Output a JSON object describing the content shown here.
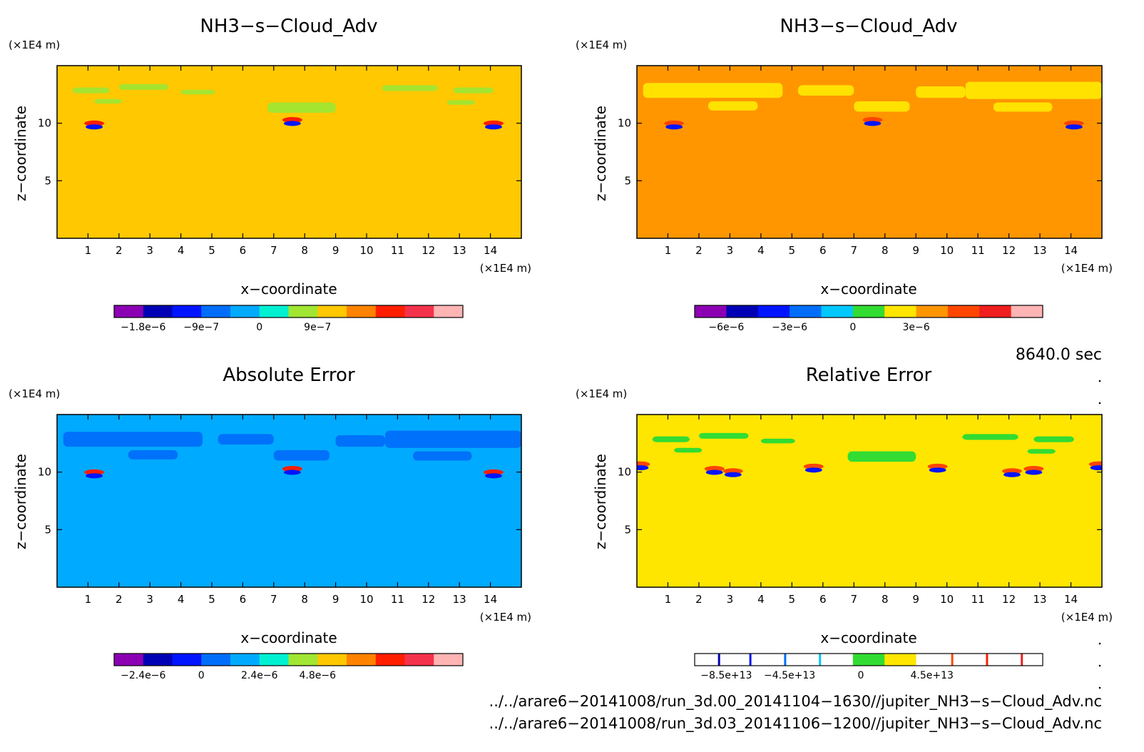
{
  "chart_data": [
    {
      "type": "heatmap",
      "title": "NH3−s−Cloud_Adv",
      "xlabel": "x−coordinate",
      "ylabel": "z−coordinate",
      "x_unit": "(×1E4 m)",
      "y_unit": "(×1E4 m)",
      "xticks": [
        "1",
        "2",
        "3",
        "4",
        "5",
        "6",
        "7",
        "8",
        "9",
        "10",
        "11",
        "12",
        "13",
        "14"
      ],
      "yticks": [
        "10",
        "5"
      ],
      "xlim": [
        0,
        15
      ],
      "ylim": [
        0,
        15
      ],
      "background_color": "#ffc800",
      "colorbar": {
        "colors": [
          "#8c00b4",
          "#0000b4",
          "#0014ff",
          "#006efa",
          "#00aaff",
          "#00f0d2",
          "#a0e632",
          "#ffc800",
          "#ff8200",
          "#ff1e00",
          "#f5324b",
          "#ffb4b4"
        ],
        "tick_labels": [
          "−1.8e−6",
          "−9e−7",
          "0",
          "9e−7"
        ],
        "tick_values": [
          -1.8e-06,
          -9e-07,
          0,
          9e-07
        ]
      }
    },
    {
      "type": "heatmap",
      "title": "NH3−s−Cloud_Adv",
      "xlabel": "x−coordinate",
      "ylabel": "z−coordinate",
      "x_unit": "(×1E4 m)",
      "y_unit": "(×1E4 m)",
      "xticks": [
        "1",
        "2",
        "3",
        "4",
        "5",
        "6",
        "7",
        "8",
        "9",
        "10",
        "11",
        "12",
        "13",
        "14"
      ],
      "yticks": [
        "10",
        "5"
      ],
      "xlim": [
        0,
        15
      ],
      "ylim": [
        0,
        15
      ],
      "background_color": "#ff9600",
      "colorbar": {
        "colors": [
          "#8c00b4",
          "#0000b4",
          "#0014ff",
          "#006efa",
          "#00c8ff",
          "#32dc32",
          "#ffe600",
          "#ff9600",
          "#ff4600",
          "#f01e1e",
          "#ffb4b4"
        ],
        "tick_labels": [
          "−6e−6",
          "−3e−6",
          "0",
          "3e−6"
        ],
        "tick_values": [
          -6e-06,
          -3e-06,
          0,
          3e-06
        ]
      }
    },
    {
      "type": "heatmap",
      "title": "Absolute Error",
      "xlabel": "x−coordinate",
      "ylabel": "z−coordinate",
      "x_unit": "(×1E4 m)",
      "y_unit": "(×1E4 m)",
      "xticks": [
        "1",
        "2",
        "3",
        "4",
        "5",
        "6",
        "7",
        "8",
        "9",
        "10",
        "11",
        "12",
        "13",
        "14"
      ],
      "yticks": [
        "10",
        "5"
      ],
      "xlim": [
        0,
        15
      ],
      "ylim": [
        0,
        15
      ],
      "background_color": "#00aaff",
      "colorbar": {
        "colors": [
          "#8c00b4",
          "#0000b4",
          "#0014ff",
          "#006efa",
          "#00aaff",
          "#00f0d2",
          "#a0e632",
          "#ffc800",
          "#ff8200",
          "#ff1e00",
          "#f5324b",
          "#ffb4b4"
        ],
        "tick_labels": [
          "−2.4e−6",
          "0",
          "2.4e−6",
          "4.8e−6"
        ],
        "tick_values": [
          -2.4e-06,
          0,
          2.4e-06,
          4.8e-06
        ]
      }
    },
    {
      "type": "heatmap",
      "title": "Relative Error",
      "xlabel": "x−coordinate",
      "ylabel": "z−coordinate",
      "x_unit": "(×1E4 m)",
      "y_unit": "(×1E4 m)",
      "xticks": [
        "1",
        "2",
        "3",
        "4",
        "5",
        "6",
        "7",
        "8",
        "9",
        "10",
        "11",
        "12",
        "13",
        "14"
      ],
      "yticks": [
        "10",
        "5"
      ],
      "xlim": [
        0,
        15
      ],
      "ylim": [
        0,
        15
      ],
      "background_color": "#ffe600",
      "colorbar": {
        "colors": [
          "#ffffff",
          "#ffffff",
          "#ffffff",
          "#ffffff",
          "#ffffff",
          "#32dc32",
          "#ffe600",
          "#ffffff",
          "#ffffff",
          "#ffffff",
          "#ffffff"
        ],
        "tick_labels": [
          "−8.5e+13",
          "−4.5e+13",
          "0",
          "4.5e+13"
        ],
        "tick_values": [
          -85000000000000.0,
          -45000000000000.0,
          0,
          45000000000000.0
        ]
      }
    }
  ],
  "time_label": "8640.0 sec",
  "files": [
    "../../arare6−20141008/run_3d.00_20141104−1630//jupiter_NH3−s−Cloud_Adv.nc",
    "../../arare6−20141008/run_3d.03_20141106−1200//jupiter_NH3−s−Cloud_Adv.nc"
  ]
}
